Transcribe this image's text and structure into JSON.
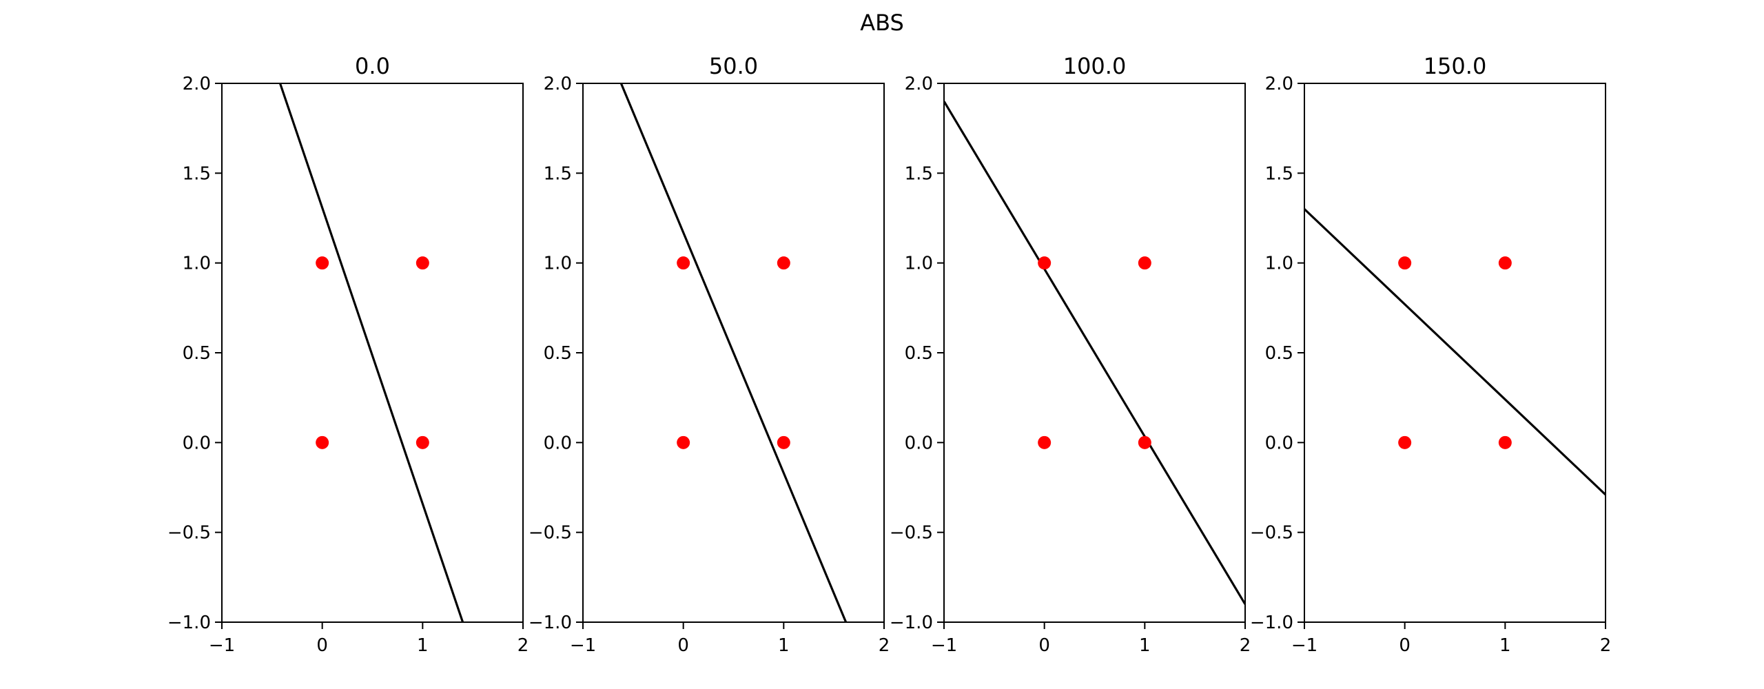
{
  "figure": {
    "suptitle": "ABS"
  },
  "colors": {
    "points": "#ff0000",
    "line": "#000000",
    "axes": "#000000",
    "background": "#ffffff"
  },
  "chart_data": [
    {
      "type": "scatter",
      "title": "0.0",
      "xlim": [
        -1,
        2
      ],
      "ylim": [
        -1,
        2
      ],
      "xticks": [
        "−1",
        "0",
        "1",
        "2"
      ],
      "yticks": [
        "−1.0",
        "−0.5",
        "0.0",
        "0.5",
        "1.0",
        "1.5",
        "2.0"
      ],
      "xtick_values": [
        -1,
        0,
        1,
        2
      ],
      "ytick_values": [
        -1.0,
        -0.5,
        0.0,
        0.5,
        1.0,
        1.5,
        2.0
      ],
      "points": [
        [
          0,
          0
        ],
        [
          0,
          1
        ],
        [
          1,
          0
        ],
        [
          1,
          1
        ]
      ],
      "line": [
        [
          -0.42,
          2.0
        ],
        [
          1.4,
          -1.0
        ]
      ],
      "grid": false
    },
    {
      "type": "scatter",
      "title": "50.0",
      "xlim": [
        -1,
        2
      ],
      "ylim": [
        -1,
        2
      ],
      "xticks": [
        "−1",
        "0",
        "1",
        "2"
      ],
      "yticks": [
        "−1.0",
        "−0.5",
        "0.0",
        "0.5",
        "1.0",
        "1.5",
        "2.0"
      ],
      "xtick_values": [
        -1,
        0,
        1,
        2
      ],
      "ytick_values": [
        -1.0,
        -0.5,
        0.0,
        0.5,
        1.0,
        1.5,
        2.0
      ],
      "points": [
        [
          0,
          0
        ],
        [
          0,
          1
        ],
        [
          1,
          0
        ],
        [
          1,
          1
        ]
      ],
      "line": [
        [
          -0.62,
          2.0
        ],
        [
          1.62,
          -1.0
        ]
      ],
      "grid": false
    },
    {
      "type": "scatter",
      "title": "100.0",
      "xlim": [
        -1,
        2
      ],
      "ylim": [
        -1,
        2
      ],
      "xticks": [
        "−1",
        "0",
        "1",
        "2"
      ],
      "yticks": [
        "−1.0",
        "−0.5",
        "0.0",
        "0.5",
        "1.0",
        "1.5",
        "2.0"
      ],
      "xtick_values": [
        -1,
        0,
        1,
        2
      ],
      "ytick_values": [
        -1.0,
        -0.5,
        0.0,
        0.5,
        1.0,
        1.5,
        2.0
      ],
      "points": [
        [
          0,
          0
        ],
        [
          0,
          1
        ],
        [
          1,
          0
        ],
        [
          1,
          1
        ]
      ],
      "line": [
        [
          -1.0,
          1.9
        ],
        [
          2.0,
          -0.9
        ]
      ],
      "grid": false
    },
    {
      "type": "scatter",
      "title": "150.0",
      "xlim": [
        -1,
        2
      ],
      "ylim": [
        -1,
        2
      ],
      "xticks": [
        "−1",
        "0",
        "1",
        "2"
      ],
      "yticks": [
        "−1.0",
        "−0.5",
        "0.0",
        "0.5",
        "1.0",
        "1.5",
        "2.0"
      ],
      "xtick_values": [
        -1,
        0,
        1,
        2
      ],
      "ytick_values": [
        -1.0,
        -0.5,
        0.0,
        0.5,
        1.0,
        1.5,
        2.0
      ],
      "points": [
        [
          0,
          0
        ],
        [
          0,
          1
        ],
        [
          1,
          0
        ],
        [
          1,
          1
        ]
      ],
      "line": [
        [
          -1.0,
          1.3
        ],
        [
          2.0,
          -0.29
        ]
      ],
      "grid": false
    }
  ]
}
